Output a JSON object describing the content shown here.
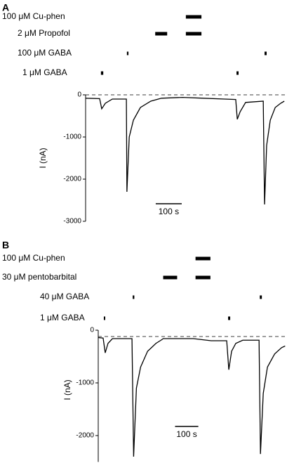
{
  "chart_data": [
    {
      "type": "line",
      "panel": "A",
      "ylabel": "I (nA)",
      "applications": [
        {
          "label": "100 μM Cu-phen",
          "intervals": [
            [
              386,
              446
            ]
          ]
        },
        {
          "label": "2 μM Propofol",
          "intervals": [
            [
              268,
              314
            ],
            [
              386,
              446
            ]
          ]
        },
        {
          "label": "100 μM GABA",
          "intervals": [
            [
              159,
              165
            ],
            [
              689,
              697
            ]
          ]
        },
        {
          "label": "1 μM GABA",
          "intervals": [
            [
              59,
              68
            ],
            [
              581,
              589
            ]
          ]
        }
      ],
      "x": [
        0,
        54,
        62,
        76,
        103,
        157,
        159,
        168,
        184,
        211,
        251,
        292,
        373,
        454,
        535,
        578,
        584,
        595,
        616,
        684,
        689,
        697,
        711,
        730,
        751,
        765
      ],
      "series": [
        {
          "color": "#000000",
          "values": [
            -80,
            -90,
            -330,
            -200,
            -100,
            -100,
            -2300,
            -1000,
            -600,
            -300,
            -150,
            -80,
            -60,
            -80,
            -100,
            -110,
            -580,
            -400,
            -180,
            -150,
            -2600,
            -1200,
            -600,
            -300,
            -200,
            -150
          ]
        }
      ],
      "reference_line": 0,
      "xlim": [
        0,
        770
      ],
      "ylim": [
        -3000,
        0
      ],
      "yticks": [
        -3000,
        -2000,
        -1000,
        0
      ],
      "scale_bar": {
        "x": [
          270,
          370
        ],
        "label": "100 s"
      }
    },
    {
      "type": "line",
      "panel": "B",
      "ylabel": "I (nA)",
      "applications": [
        {
          "label": "100 μM Cu-phen",
          "intervals": [
            [
              418,
              482
            ]
          ]
        },
        {
          "label": "30 μM pentobarbital",
          "intervals": [
            [
              279,
              339
            ],
            [
              418,
              482
            ]
          ]
        },
        {
          "label": "40 μM GABA",
          "intervals": [
            [
              148,
              155
            ],
            [
              694,
              703
            ]
          ]
        },
        {
          "label": "1 μM GABA",
          "intervals": [
            [
              24,
              30
            ],
            [
              558,
              567
            ]
          ]
        }
      ],
      "x": [
        0,
        21,
        30,
        42,
        61,
        145,
        152,
        164,
        182,
        212,
        248,
        273,
        279,
        409,
        485,
        552,
        561,
        573,
        591,
        621,
        691,
        697,
        709,
        727,
        758,
        788,
        803
      ],
      "series": [
        {
          "color": "#000000",
          "values": [
            -140,
            -150,
            -430,
            -250,
            -160,
            -160,
            -2400,
            -1100,
            -700,
            -400,
            -250,
            -180,
            -160,
            -160,
            -200,
            -200,
            -750,
            -400,
            -250,
            -190,
            -190,
            -2350,
            -1200,
            -700,
            -450,
            -330,
            -300
          ]
        }
      ],
      "reference_line": -120,
      "xlim": [
        0,
        805
      ],
      "ylim": [
        -2500,
        0
      ],
      "yticks": [
        -2000,
        -1000,
        0
      ],
      "scale_bar": {
        "x": [
          330,
          430
        ],
        "label": "100 s"
      }
    }
  ]
}
